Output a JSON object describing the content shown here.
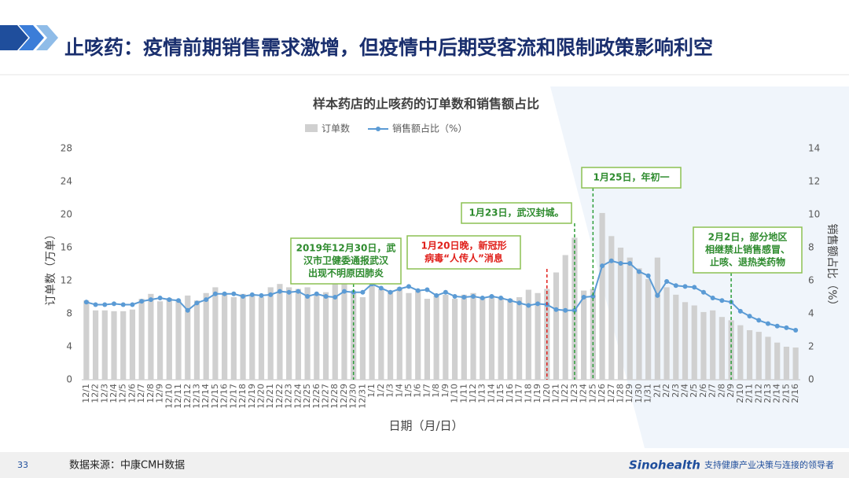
{
  "header": {
    "title": "止咳药：疫情前期销售需求激增，但疫情中后期受客流和限制政策影响利空"
  },
  "footer": {
    "page": "33",
    "source": "数据来源：中康CMH数据",
    "logo": "Sinohealth",
    "tagline": "支持健康产业决策与连接的领导者"
  },
  "chart_data": {
    "type": "bar_line",
    "title": "样本药店的止咳药的订单数和销售额占比",
    "xlabel": "日期（月/日）",
    "ylabel": "订单数（万单）",
    "y2label": "销售额占比（%）",
    "categories": [
      "12/1",
      "12/2",
      "12/3",
      "12/4",
      "12/5",
      "12/6",
      "12/7",
      "12/8",
      "12/9",
      "12/10",
      "12/11",
      "12/12",
      "12/13",
      "12/14",
      "12/15",
      "12/16",
      "12/17",
      "12/18",
      "12/19",
      "12/20",
      "12/21",
      "12/22",
      "12/23",
      "12/24",
      "12/25",
      "12/26",
      "12/27",
      "12/28",
      "12/29",
      "12/30",
      "12/31",
      "1/1",
      "1/2",
      "1/3",
      "1/4",
      "1/5",
      "1/6",
      "1/7",
      "1/8",
      "1/9",
      "1/10",
      "1/11",
      "1/12",
      "1/13",
      "1/14",
      "1/15",
      "1/16",
      "1/17",
      "1/18",
      "1/19",
      "1/20",
      "1/21",
      "1/22",
      "1/23",
      "1/24",
      "1/25",
      "1/26",
      "1/27",
      "1/28",
      "1/29",
      "1/30",
      "1/31",
      "2/1",
      "2/2",
      "2/3",
      "2/4",
      "2/5",
      "2/6",
      "2/7",
      "2/8",
      "2/9",
      "2/10",
      "2/11",
      "2/12",
      "2/13",
      "2/14",
      "2/15",
      "2/16"
    ],
    "series": [
      {
        "name": "订单数",
        "color": "#d0d0d0",
        "values": [
          9.6,
          8.4,
          8.4,
          8.3,
          8.3,
          8.5,
          9.8,
          10.4,
          9.5,
          9.9,
          9.6,
          10.2,
          9.6,
          10.5,
          11.2,
          10.5,
          10.0,
          10.4,
          10.2,
          10.0,
          11.2,
          11.6,
          11.2,
          11.0,
          11.2,
          10.4,
          10.6,
          12.3,
          11.8,
          10.5,
          10.0,
          11.5,
          11.0,
          10.8,
          11.2,
          10.5,
          10.8,
          9.8,
          10.2,
          10.3,
          9.8,
          10.3,
          10.5,
          10.0,
          10.2,
          10.0,
          9.8,
          10.0,
          10.9,
          10.5,
          11.0,
          13.0,
          15.1,
          17.2,
          10.8,
          11.0,
          20.2,
          17.4,
          16.0,
          14.8,
          13.5,
          12.2,
          14.8,
          11.2,
          10.3,
          9.4,
          9.0,
          8.2,
          8.4,
          7.6,
          7.2,
          6.6,
          6.0,
          5.8,
          5.2,
          4.5,
          4.0,
          3.9
        ]
      },
      {
        "name": "销售额占比（%）",
        "color": "#5b9bd5",
        "axis": "y2",
        "values": [
          4.7,
          4.55,
          4.55,
          4.6,
          4.55,
          4.55,
          4.75,
          4.85,
          4.95,
          4.85,
          4.8,
          4.2,
          4.65,
          4.85,
          5.2,
          5.2,
          5.2,
          5.05,
          5.15,
          5.1,
          5.15,
          5.35,
          5.3,
          5.35,
          5.05,
          5.2,
          5.05,
          5.0,
          5.35,
          5.3,
          5.3,
          5.8,
          5.55,
          5.3,
          5.5,
          5.65,
          5.4,
          5.45,
          5.1,
          5.3,
          5.05,
          5.0,
          5.05,
          4.95,
          5.05,
          4.95,
          4.8,
          4.65,
          4.5,
          4.6,
          4.55,
          4.25,
          4.2,
          4.2,
          5.0,
          5.05,
          6.9,
          7.2,
          7.05,
          7.05,
          6.55,
          6.3,
          5.1,
          5.95,
          5.7,
          5.65,
          5.6,
          5.3,
          4.95,
          4.8,
          4.7,
          4.15,
          3.85,
          3.6,
          3.4,
          3.25,
          3.15,
          3.0
        ]
      }
    ],
    "ylim": [
      0,
      28
    ],
    "yticks": [
      0,
      4,
      8,
      12,
      16,
      20,
      24,
      28
    ],
    "y2lim": [
      0,
      14
    ],
    "y2ticks": [
      0,
      2,
      4,
      6,
      8,
      10,
      12,
      14
    ],
    "annotations": [
      {
        "lines": [
          "2019年12月30日，武",
          "汉市卫健委通报武汉",
          "出现不明原因肺炎"
        ],
        "color": "#2e8b2e"
      },
      {
        "lines": [
          "1月20日晚，新冠形",
          "病毒“人传人”消息"
        ],
        "color": "#e0201b"
      },
      {
        "lines": [
          "1月23日，武汉封城。"
        ],
        "color": "#2e8b2e"
      },
      {
        "lines": [
          "1月25日，年初一"
        ],
        "color": "#2e8b2e"
      },
      {
        "lines": [
          "2月2日，部分地区",
          "相继禁止销售感冒、",
          "止咳、退热类药物"
        ],
        "color": "#2e8b2e"
      }
    ]
  }
}
